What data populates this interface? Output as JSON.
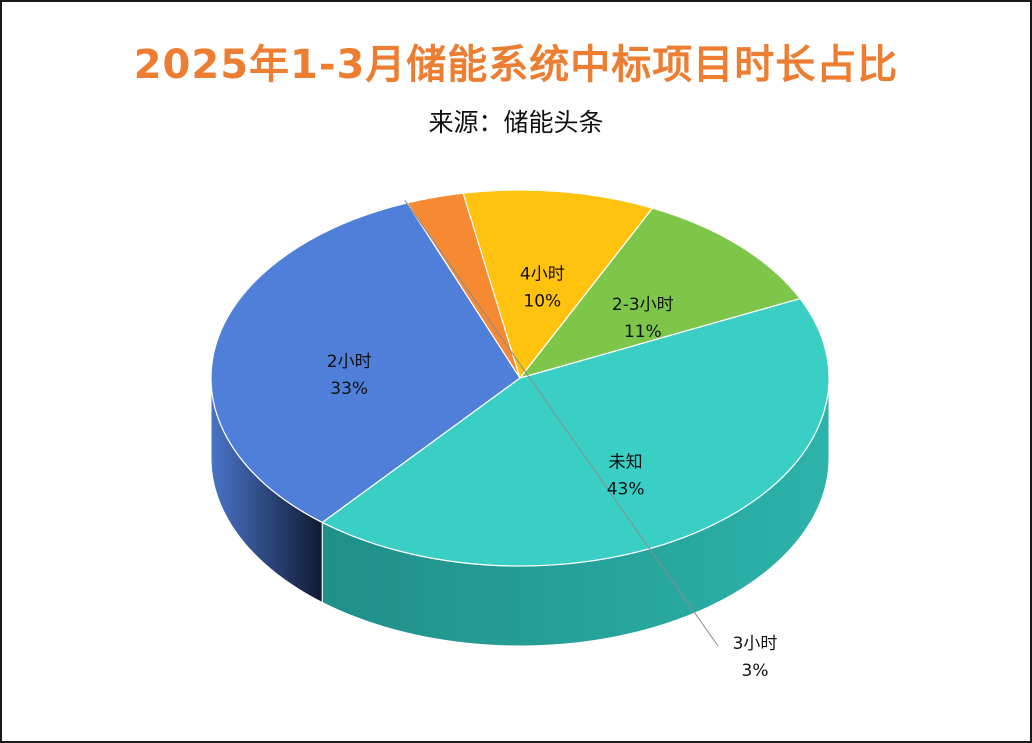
{
  "title": "2025年1-3月储能系统中标项目时长占比",
  "subtitle": "来源：储能头条",
  "chart_data": {
    "type": "pie",
    "title": "2025年1-3月储能系统中标项目时长占比",
    "subtitle": "来源：储能头条",
    "style": "3d",
    "slices": [
      {
        "label": "未知",
        "value": 43,
        "value_label": "43%",
        "color": "#3ACFC4",
        "side_color": "#2aa79e"
      },
      {
        "label": "2小时",
        "value": 33,
        "value_label": "33%",
        "color": "#4F7FD8",
        "side_color": "#1d2f57"
      },
      {
        "label": "3小时",
        "value": 3,
        "value_label": "3%",
        "color": "#F58A33",
        "side_color": "#e87a22"
      },
      {
        "label": "4小时",
        "value": 10,
        "value_label": "10%",
        "color": "#FFC20E",
        "side_color": "#f0a500"
      },
      {
        "label": "2-3小时",
        "value": 11,
        "value_label": "11%",
        "color": "#7DC64A",
        "side_color": "#5b9a33"
      }
    ]
  }
}
